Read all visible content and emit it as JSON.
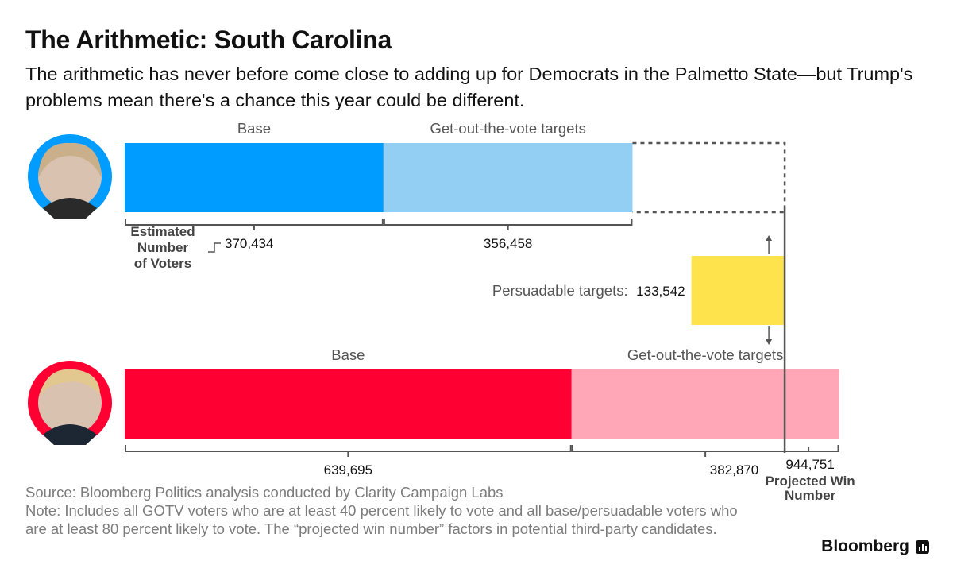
{
  "header": {
    "title": "The Arithmetic: South Carolina",
    "subtitle": "The arithmetic has never before come close to adding up for Democrats in the Palmetto State—but Trump's problems mean there's a chance this year could be different."
  },
  "chart_data": {
    "type": "bar",
    "orientation": "horizontal-stacked",
    "scale_max": 1026500,
    "projected_win": {
      "value": 944751,
      "label_value": "944,751",
      "label": "Projected Win Number"
    },
    "axis_note": "Estimated Number of Voters",
    "persuadable": {
      "label": "Persuadable targets:",
      "value": 133542,
      "value_label": "133,542",
      "color": "#ffe34c"
    },
    "rows": [
      {
        "candidate": "clinton",
        "accent": "#009cff",
        "segments": [
          {
            "name": "Base",
            "value": 370434,
            "value_label": "370,434",
            "color": "#009cff"
          },
          {
            "name": "Get-out-the-vote targets",
            "value": 356458,
            "value_label": "356,458",
            "color": "#93cff3"
          }
        ]
      },
      {
        "candidate": "trump",
        "accent": "#ff0033",
        "segments": [
          {
            "name": "Base",
            "value": 639695,
            "value_label": "639,695",
            "color": "#ff0033"
          },
          {
            "name": "Get-out-the-vote targets",
            "value": 382870,
            "value_label": "382,870",
            "color": "#ffa6b7"
          }
        ]
      }
    ]
  },
  "footer": {
    "source": "Source: Bloomberg Politics analysis conducted by Clarity Campaign Labs",
    "note": "Note: Includes all GOTV voters who are at least 40 percent likely to vote and all base/persuadable voters who are at least 80 percent likely to vote. The “projected win number” factors in potential third-party candidates.",
    "brand": "Bloomberg"
  }
}
